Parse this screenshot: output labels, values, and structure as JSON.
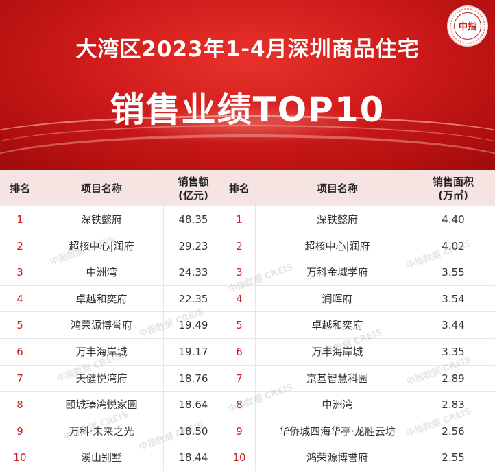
{
  "header": {
    "title_line1": "大湾区2023年1-4月深圳商品住宅",
    "title_line2": "销售业绩TOP10",
    "logo_text": "中指"
  },
  "table": {
    "left_headers": {
      "rank": "排名",
      "name": "项目名称",
      "value": "销售额\n(亿元)"
    },
    "right_headers": {
      "rank": "排名",
      "name": "项目名称",
      "value": "销售面积\n(万㎡)"
    },
    "rows": [
      {
        "l_rank": "1",
        "l_name": "深铁懿府",
        "l_value": "48.35",
        "r_rank": "1",
        "r_name": "深铁懿府",
        "r_value": "4.40"
      },
      {
        "l_rank": "2",
        "l_name": "超核中心|润府",
        "l_value": "29.23",
        "r_rank": "2",
        "r_name": "超核中心|润府",
        "r_value": "4.02"
      },
      {
        "l_rank": "3",
        "l_name": "中洲湾",
        "l_value": "24.33",
        "r_rank": "3",
        "r_name": "万科金域学府",
        "r_value": "3.55"
      },
      {
        "l_rank": "4",
        "l_name": "卓越和奕府",
        "l_value": "22.35",
        "r_rank": "4",
        "r_name": "润晖府",
        "r_value": "3.54"
      },
      {
        "l_rank": "5",
        "l_name": "鸿荣源博誉府",
        "l_value": "19.49",
        "r_rank": "5",
        "r_name": "卓越和奕府",
        "r_value": "3.44"
      },
      {
        "l_rank": "6",
        "l_name": "万丰海岸城",
        "l_value": "19.17",
        "r_rank": "6",
        "r_name": "万丰海岸城",
        "r_value": "3.35"
      },
      {
        "l_rank": "7",
        "l_name": "天健悦湾府",
        "l_value": "18.76",
        "r_rank": "7",
        "r_name": "京基智慧科园",
        "r_value": "2.89"
      },
      {
        "l_rank": "8",
        "l_name": "颐城瑧湾悦家园",
        "l_value": "18.64",
        "r_rank": "8",
        "r_name": "中洲湾",
        "r_value": "2.83"
      },
      {
        "l_rank": "9",
        "l_name": "万科·未来之光",
        "l_value": "18.50",
        "r_rank": "9",
        "r_name": "华侨城四海华亭·龙胜云坊",
        "r_value": "2.56"
      },
      {
        "l_rank": "10",
        "l_name": "溪山别墅",
        "l_value": "18.44",
        "r_rank": "10",
        "r_name": "鸿荣源博誉府",
        "r_value": "2.55"
      }
    ]
  },
  "watermark": "中指数据 CREIS",
  "colors": {
    "banner_red": "#cf1b1b",
    "header_bg": "#f6e4e2",
    "rank_red": "#c8201e"
  }
}
